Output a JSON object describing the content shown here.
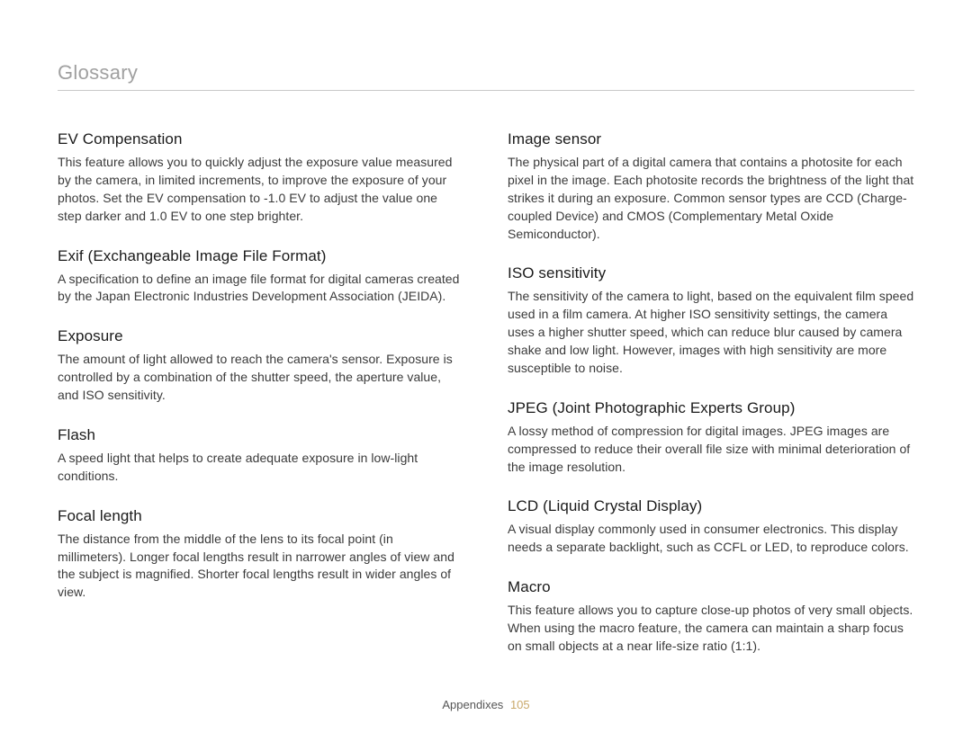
{
  "header": "Glossary",
  "footer": {
    "section": "Appendixes",
    "page": "105"
  },
  "left": [
    {
      "term": "EV Compensation",
      "def": "This feature allows you to quickly adjust the exposure value measured by the camera, in limited increments, to improve the exposure of your photos. Set the EV compensation to -1.0 EV to adjust the value one step darker and 1.0 EV to one step brighter."
    },
    {
      "term": "Exif (Exchangeable Image File Format)",
      "def": "A specification to define an image file format for digital cameras created by the Japan Electronic Industries Development Association (JEIDA)."
    },
    {
      "term": "Exposure",
      "def": "The amount of light allowed to reach the camera's sensor. Exposure is controlled by a combination of the shutter speed, the aperture value, and ISO sensitivity."
    },
    {
      "term": "Flash",
      "def": "A speed light that helps to create adequate exposure in low-light conditions."
    },
    {
      "term": "Focal length",
      "def": "The distance from the middle of the lens to its focal point (in millimeters). Longer focal lengths result in narrower angles of view and the subject is magnified. Shorter focal lengths result in wider angles of view."
    }
  ],
  "right": [
    {
      "term": "Image sensor",
      "def": "The physical part of a digital camera that contains a photosite for each pixel in the image. Each photosite records the brightness of the light that strikes it during an exposure. Common sensor types are CCD (Charge-coupled Device) and CMOS (Complementary Metal Oxide Semiconductor)."
    },
    {
      "term": "ISO sensitivity",
      "def": "The sensitivity of the camera to light, based on the equivalent film speed used in a film camera. At higher ISO sensitivity settings, the camera uses a higher shutter speed, which can reduce blur caused by camera shake and low light. However, images with high sensitivity are more susceptible to noise."
    },
    {
      "term": "JPEG (Joint Photographic Experts Group)",
      "def": "A lossy method of compression for digital images. JPEG images are compressed to reduce their overall file size with minimal deterioration of the image resolution."
    },
    {
      "term": "LCD (Liquid Crystal Display)",
      "def": "A visual display commonly used in consumer electronics. This display needs a separate backlight, such as CCFL or LED, to reproduce colors."
    },
    {
      "term": "Macro",
      "def": "This feature allows you to capture close-up photos of very small objects. When using the macro feature, the camera can maintain a sharp focus on small objects at a near life-size ratio (1:1)."
    }
  ]
}
